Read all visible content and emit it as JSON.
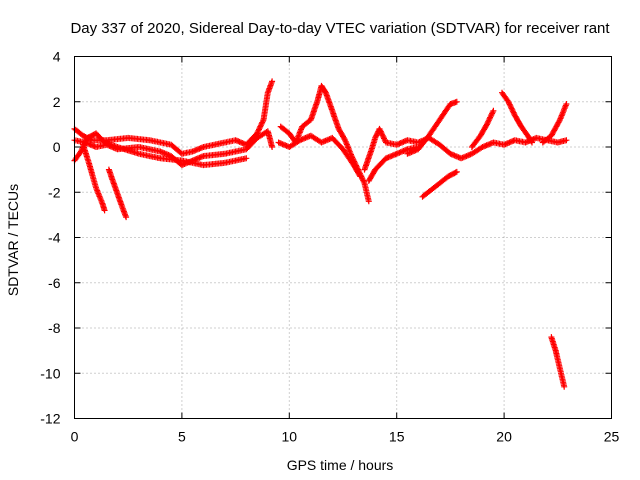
{
  "chart_data": {
    "type": "scatter",
    "title": "Day 337 of 2020, Sidereal Day-to-day VTEC variation (SDTVAR) for receiver rant",
    "xlabel": "GPS time / hours",
    "ylabel": "SDTVAR / TECUs",
    "xlim": [
      0,
      25
    ],
    "ylim": [
      -12,
      4
    ],
    "xticks": [
      0,
      5,
      10,
      15,
      20,
      25
    ],
    "yticks": [
      4,
      2,
      0,
      -2,
      -4,
      -6,
      -8,
      -10,
      -12
    ],
    "grid": true,
    "series": [
      {
        "name": "SDTVAR",
        "color": "#ff0000",
        "marker": "plus",
        "segments": [
          [
            [
              0,
              0.8
            ],
            [
              0.4,
              0.5
            ],
            [
              0.8,
              0.3
            ],
            [
              1.5,
              0.3
            ],
            [
              2.5,
              0.4
            ],
            [
              3.5,
              0.3
            ],
            [
              4,
              0.2
            ],
            [
              4.5,
              0.1
            ],
            [
              5,
              -0.3
            ],
            [
              5.5,
              -0.2
            ],
            [
              6,
              0
            ],
            [
              7,
              0.2
            ],
            [
              7.5,
              0.3
            ],
            [
              8,
              0.1
            ],
            [
              8.5,
              0.6
            ],
            [
              8.8,
              1.2
            ],
            [
              9.0,
              2.4
            ],
            [
              9.2,
              2.9
            ]
          ],
          [
            [
              0,
              0.3
            ],
            [
              0.5,
              0.2
            ],
            [
              1,
              0
            ],
            [
              1.5,
              0.1
            ],
            [
              2,
              -0.1
            ],
            [
              3,
              0
            ],
            [
              4,
              -0.2
            ],
            [
              4.5,
              -0.4
            ],
            [
              5,
              -0.8
            ],
            [
              5.5,
              -0.6
            ],
            [
              6,
              -0.4
            ],
            [
              7,
              -0.3
            ],
            [
              8,
              -0.1
            ],
            [
              8.5,
              0.4
            ],
            [
              9,
              0.7
            ],
            [
              9.2,
              0
            ]
          ],
          [
            [
              0,
              -0.6
            ],
            [
              0.3,
              -0.2
            ],
            [
              0.6,
              0.4
            ],
            [
              1.0,
              0.6
            ],
            [
              1.4,
              0.2
            ],
            [
              2,
              0
            ],
            [
              3,
              -0.3
            ],
            [
              4,
              -0.5
            ],
            [
              5,
              -0.6
            ],
            [
              6,
              -0.8
            ],
            [
              7,
              -0.7
            ],
            [
              8,
              -0.5
            ]
          ],
          [
            [
              0.4,
              0.1
            ],
            [
              0.7,
              -0.8
            ],
            [
              1.0,
              -1.8
            ],
            [
              1.3,
              -2.5
            ],
            [
              1.4,
              -2.8
            ]
          ],
          [
            [
              1.6,
              -1.0
            ],
            [
              1.9,
              -1.8
            ],
            [
              2.2,
              -2.6
            ],
            [
              2.4,
              -3.1
            ]
          ],
          [
            [
              9.6,
              0.9
            ],
            [
              10,
              0.6
            ],
            [
              10.3,
              0.2
            ],
            [
              10.6,
              0.9
            ],
            [
              11,
              1.2
            ],
            [
              11.3,
              2.0
            ],
            [
              11.5,
              2.7
            ],
            [
              11.7,
              2.4
            ],
            [
              12,
              1.6
            ],
            [
              12.3,
              0.8
            ],
            [
              12.6,
              0.3
            ],
            [
              12.9,
              -0.4
            ],
            [
              13.2,
              -1.0
            ],
            [
              13.5,
              -1.6
            ],
            [
              13.7,
              -2.4
            ]
          ],
          [
            [
              9.5,
              0.2
            ],
            [
              10,
              0
            ],
            [
              10.5,
              0.3
            ],
            [
              11,
              0.5
            ],
            [
              11.5,
              0.2
            ],
            [
              12,
              0.4
            ],
            [
              12.5,
              -0.1
            ],
            [
              13,
              -0.8
            ],
            [
              13.3,
              -1.3
            ]
          ],
          [
            [
              13.5,
              -1.0
            ],
            [
              13.8,
              -0.2
            ],
            [
              14,
              0.4
            ],
            [
              14.2,
              0.8
            ],
            [
              14.5,
              0.2
            ],
            [
              15,
              0.1
            ],
            [
              15.5,
              0.3
            ],
            [
              16,
              0.2
            ],
            [
              16.5,
              0.4
            ],
            [
              17,
              0.1
            ],
            [
              17.5,
              -0.3
            ],
            [
              18,
              -0.5
            ],
            [
              18.5,
              -0.3
            ],
            [
              19,
              0
            ],
            [
              19.5,
              0.2
            ],
            [
              20,
              0.1
            ],
            [
              20.5,
              0.3
            ],
            [
              21,
              0.2
            ],
            [
              21.5,
              0.4
            ],
            [
              22,
              0.3
            ],
            [
              22.5,
              0.2
            ],
            [
              22.9,
              0.3
            ]
          ],
          [
            [
              13.7,
              -1.5
            ],
            [
              14,
              -1.0
            ],
            [
              14.5,
              -0.5
            ],
            [
              15,
              -0.3
            ],
            [
              15.5,
              -0.1
            ],
            [
              16,
              0
            ]
          ],
          [
            [
              15.5,
              -0.3
            ],
            [
              16,
              -0.1
            ],
            [
              16.5,
              0.5
            ],
            [
              17,
              1.2
            ],
            [
              17.5,
              1.9
            ],
            [
              17.8,
              2.0
            ]
          ],
          [
            [
              16.2,
              -2.2
            ],
            [
              16.6,
              -1.9
            ],
            [
              17,
              -1.6
            ],
            [
              17.4,
              -1.3
            ],
            [
              17.8,
              -1.1
            ]
          ],
          [
            [
              18.5,
              0
            ],
            [
              18.9,
              0.5
            ],
            [
              19.2,
              1.0
            ],
            [
              19.5,
              1.6
            ]
          ],
          [
            [
              19.9,
              2.4
            ],
            [
              20.2,
              2.0
            ],
            [
              20.5,
              1.4
            ],
            [
              20.8,
              0.9
            ],
            [
              21.1,
              0.5
            ],
            [
              21.3,
              0.2
            ]
          ],
          [
            [
              21.8,
              0.2
            ],
            [
              22.2,
              0.5
            ],
            [
              22.6,
              1.2
            ],
            [
              22.9,
              1.9
            ]
          ],
          [
            [
              22.2,
              -8.4
            ],
            [
              22.4,
              -9.0
            ],
            [
              22.6,
              -9.8
            ],
            [
              22.8,
              -10.6
            ]
          ]
        ]
      }
    ]
  }
}
